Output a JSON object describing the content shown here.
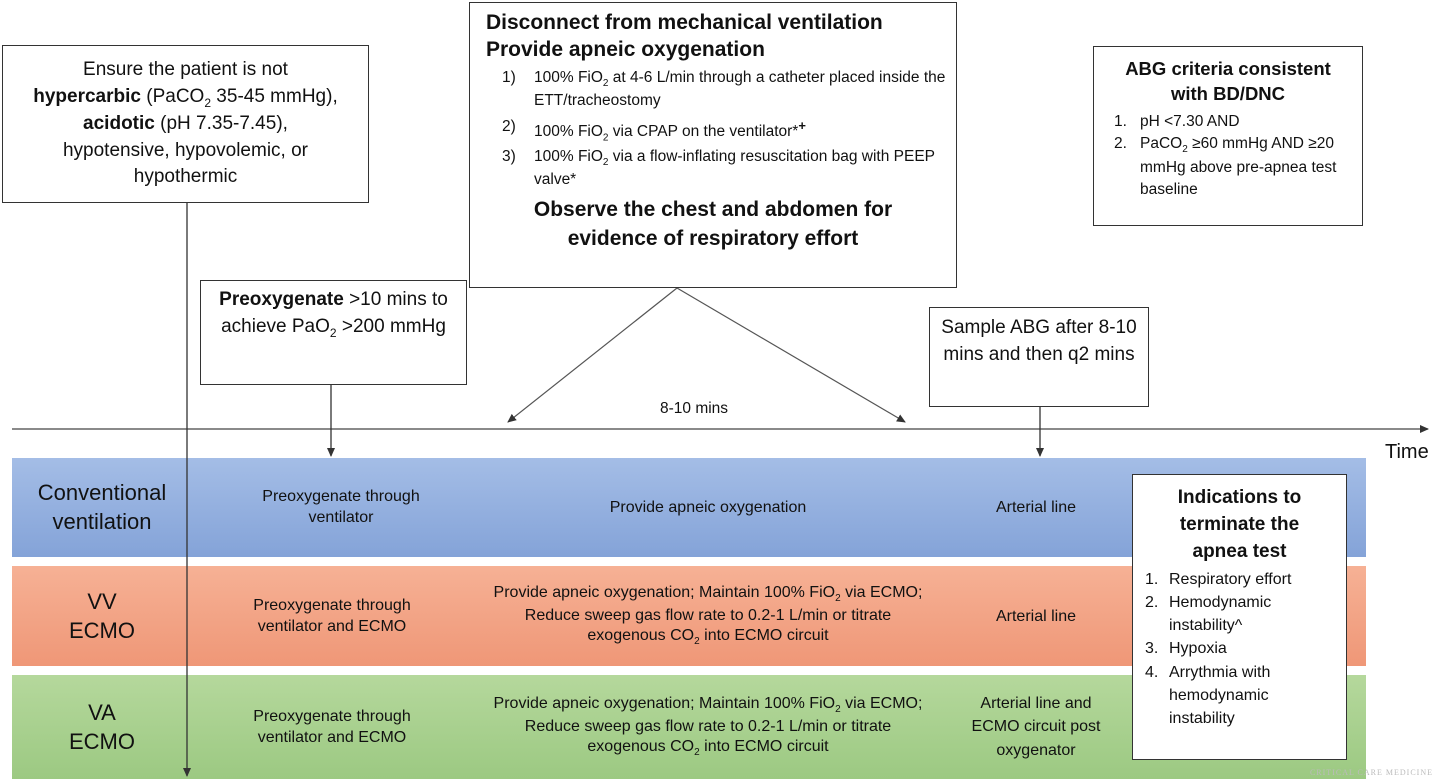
{
  "precheck": {
    "l1": "Ensure the patient is not",
    "hypercarbic": "hypercarbic",
    "hypercarbic_rest_a": " (PaCO",
    "hypercarbic_sub": "2",
    "hypercarbic_rest_b": " 35-45 mmHg),",
    "acidotic": "acidotic",
    "acidotic_rest": " (pH 7.35-7.45),",
    "l4": "hypotensive, hypovolemic, or",
    "l5": "hypothermic"
  },
  "disconnect": {
    "title1": "Disconnect from mechanical ventilation",
    "title2": "Provide apneic oxygenation",
    "items": [
      {
        "num": "1)",
        "a": "100% FiO",
        "sub": "2",
        "b": " at 4-6 L/min through a catheter placed inside the ETT/tracheostomy"
      },
      {
        "num": "2)",
        "a": "100% FiO",
        "sub": "2",
        "b": " via CPAP on the ventilator*",
        "sup": "+"
      },
      {
        "num": "3)",
        "a": "100% FiO",
        "sub": "2",
        "b": " via a flow-inflating resuscitation bag with PEEP valve*"
      }
    ],
    "observe1": "Observe the chest and abdomen for",
    "observe2": "evidence of respiratory effort"
  },
  "abg_criteria": {
    "title": "ABG criteria consistent with BD/DNC",
    "items": [
      {
        "num": "1.",
        "text": "pH <7.30 AND"
      },
      {
        "num": "2.",
        "a": "PaCO",
        "sub": "2",
        "b": " ≥60 mmHg AND ≥20 mmHg above pre-apnea test baseline"
      }
    ]
  },
  "preoxygenate": {
    "bold": "Preoxygenate",
    "a": " >10 mins to achieve PaO",
    "sub": "2",
    "b": " >200 mmHg"
  },
  "sample_abg": {
    "text": "Sample ABG after 8-10 mins and then q2 mins"
  },
  "timeline": {
    "duration_label": "8-10 mins",
    "axis_label": "Time"
  },
  "rows": [
    {
      "label": "Conventional ventilation",
      "preox": "Preoxygenate through ventilator",
      "apneic": "Provide apneic oxygenation",
      "sampling": "Arterial line"
    },
    {
      "label": "VV ECMO",
      "preox": "Preoxygenate through ventilator and ECMO",
      "apneic_a": "Provide apneic oxygenation; Maintain 100% FiO",
      "apneic_sub1": "2",
      "apneic_b": " via ECMO; Reduce sweep gas flow rate to 0.2-1 L/min or titrate exogenous CO",
      "apneic_sub2": "2",
      "apneic_c": " into ECMO circuit",
      "sampling": "Arterial line"
    },
    {
      "label": "VA ECMO",
      "preox": "Preoxygenate through ventilator and ECMO",
      "apneic_a": "Provide apneic oxygenation; Maintain 100% FiO",
      "apneic_sub1": "2",
      "apneic_b": " via ECMO; Reduce sweep gas flow rate to 0.2-1 L/min or titrate exogenous CO",
      "apneic_sub2": "2",
      "apneic_c": " into ECMO circuit",
      "sampling": "Arterial line and ECMO circuit post oxygenator"
    }
  ],
  "terminate": {
    "title": "Indications to terminate the apnea test",
    "items": [
      {
        "num": "1.",
        "text": "Respiratory effort"
      },
      {
        "num": "2.",
        "text": "Hemodynamic instability^"
      },
      {
        "num": "3.",
        "text": "Hypoxia"
      },
      {
        "num": "4.",
        "text": "Arrythmia with hemodynamic instability"
      }
    ]
  },
  "watermark": "CRITICAL CARE MEDICINE",
  "colors": {
    "conventional_band": "#8eaadc",
    "vv_band": "#f2a180",
    "va_band": "#a6cf8b"
  }
}
